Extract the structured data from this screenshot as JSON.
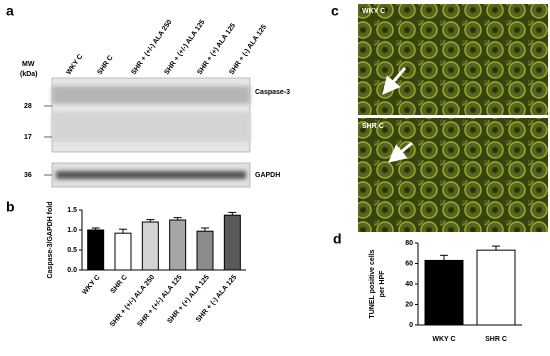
{
  "panel_labels": [
    "a",
    "b",
    "c",
    "d"
  ],
  "blot": {
    "mw_label": "MW",
    "mw_unit": "(kDa)",
    "lanes": [
      "WKY C",
      "SHR C",
      "SHR + (+/-) ALA 250",
      "SHR + (+/-) ALA 125",
      "SHR + (+) ALA 125",
      "SHR + (-) ALA 125"
    ],
    "markers": [
      28,
      17,
      36
    ],
    "bands": [
      "Caspase-3",
      "GAPDH"
    ]
  },
  "micrographs": [
    "WKY C",
    "SHR C"
  ],
  "chart_data": [
    {
      "type": "bar",
      "ylabel": "Caspase-3/GAPDH fold",
      "categories": [
        "WKY C",
        "SHR C",
        "SHR + (+/-) ALA 250",
        "SHR + (+/-) ALA 125",
        "SHR + (+) ALA 125",
        "SHR + (-) ALA 125"
      ],
      "values": [
        1.0,
        0.92,
        1.2,
        1.25,
        0.97,
        1.37
      ],
      "errors": [
        0.05,
        0.1,
        0.06,
        0.06,
        0.08,
        0.07
      ],
      "colors": [
        "#000000",
        "#ffffff",
        "#d4d4d4",
        "#a6a6a6",
        "#8c8c8c",
        "#5a5a5a"
      ],
      "ylim": [
        0,
        1.5
      ],
      "yticks": [
        {
          "value": 0,
          "label": "0.0"
        },
        0.5,
        {
          "value": 1,
          "label": "1.0"
        },
        1.5
      ]
    },
    {
      "type": "bar",
      "ylabel": [
        "TUNEL positive cells",
        "per HPF"
      ],
      "categories": [
        "WKY C",
        "SHR C"
      ],
      "values": [
        63,
        73
      ],
      "errors": [
        5,
        4
      ],
      "colors": [
        "#000000",
        "#ffffff"
      ],
      "ylim": [
        0,
        80
      ],
      "yticks": [
        0,
        20,
        40,
        60,
        80
      ]
    }
  ]
}
